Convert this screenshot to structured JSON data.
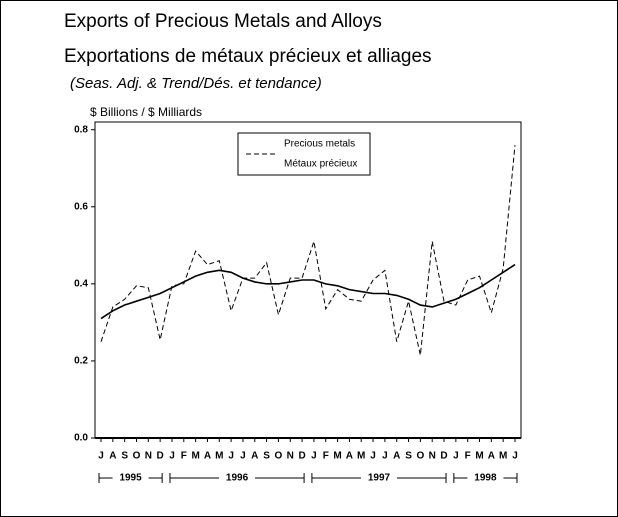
{
  "chart_data": {
    "type": "line",
    "title": "Exports of Precious Metals and Alloys",
    "title_fr": "Exportations de métaux précieux et alliages",
    "subtitle": "(Seas. Adj. & Trend/Dés. et tendance)",
    "y_axis_label": "$ Billions / $ Milliards",
    "categories": [
      "J",
      "A",
      "S",
      "O",
      "N",
      "D",
      "J",
      "F",
      "M",
      "A",
      "M",
      "J",
      "J",
      "A",
      "S",
      "O",
      "N",
      "D",
      "J",
      "F",
      "M",
      "A",
      "M",
      "J",
      "J",
      "A",
      "S",
      "O",
      "N",
      "D",
      "J",
      "F",
      "M",
      "A",
      "M",
      "J"
    ],
    "years": [
      "1995",
      "1996",
      "1997",
      "1998"
    ],
    "series": [
      {
        "name": "Precious metals",
        "name_fr": "Métaux précieux",
        "color": "#000000",
        "style": "dashed",
        "values": [
          0.25,
          0.34,
          0.36,
          0.395,
          0.39,
          0.255,
          0.395,
          0.4,
          0.485,
          0.45,
          0.46,
          0.33,
          0.415,
          0.415,
          0.455,
          0.32,
          0.415,
          0.415,
          0.51,
          0.335,
          0.385,
          0.36,
          0.355,
          0.41,
          0.435,
          0.25,
          0.355,
          0.215,
          0.51,
          0.355,
          0.345,
          0.41,
          0.42,
          0.325,
          0.44,
          0.76
        ]
      },
      {
        "color": "#000000",
        "style": "solid",
        "values": [
          0.31,
          0.33,
          0.345,
          0.355,
          0.365,
          0.375,
          0.39,
          0.405,
          0.42,
          0.43,
          0.435,
          0.43,
          0.415,
          0.405,
          0.4,
          0.4,
          0.405,
          0.41,
          0.41,
          0.4,
          0.395,
          0.385,
          0.38,
          0.375,
          0.375,
          0.37,
          0.36,
          0.345,
          0.34,
          0.35,
          0.36,
          0.375,
          0.39,
          0.41,
          0.43,
          0.45
        ]
      }
    ],
    "ylim": [
      0,
      0.82
    ],
    "yticks": [
      {
        "value": 0,
        "label": "0.0"
      },
      0.2,
      0.4,
      0.6,
      0.8
    ],
    "grid": false
  }
}
